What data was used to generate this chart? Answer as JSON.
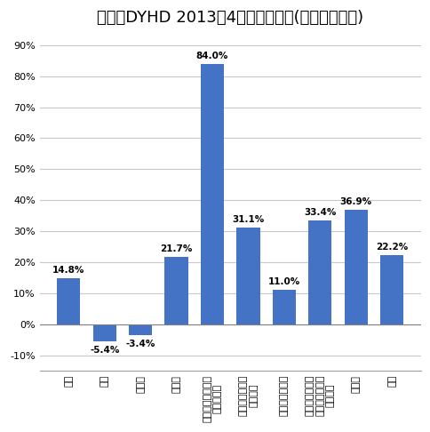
{
  "title_main": "博報堂DYHD 2013年4月度単体売上",
  "title_small": "(前々年同月比)",
  "categories": [
    "新聞",
    "雑誌",
    "ラジオ",
    "テレビ",
    "インターネット・\nコンテンツ",
    "プロモーション\nメディア",
    "クリエイティブ",
    "ストラテジー・\nプロモーション\nビジネス",
    "その他",
    "合計"
  ],
  "values": [
    14.8,
    -5.4,
    -3.4,
    21.7,
    84.0,
    31.1,
    11.0,
    33.4,
    36.9,
    22.2
  ],
  "labels": [
    "14.8%",
    "-5.4%",
    "-3.4%",
    "21.7%",
    "84.0%",
    "31.1%",
    "11.0%",
    "33.4%",
    "36.9%",
    "22.2%"
  ],
  "bar_color": "#4472c4",
  "ylim": [
    -15,
    95
  ],
  "yticks": [
    -10,
    0,
    10,
    20,
    30,
    40,
    50,
    60,
    70,
    80,
    90
  ],
  "background_color": "#ffffff",
  "grid_color": "#c8c8c8",
  "title_fontsize": 13,
  "label_fontsize": 7.5,
  "tick_fontsize": 8
}
